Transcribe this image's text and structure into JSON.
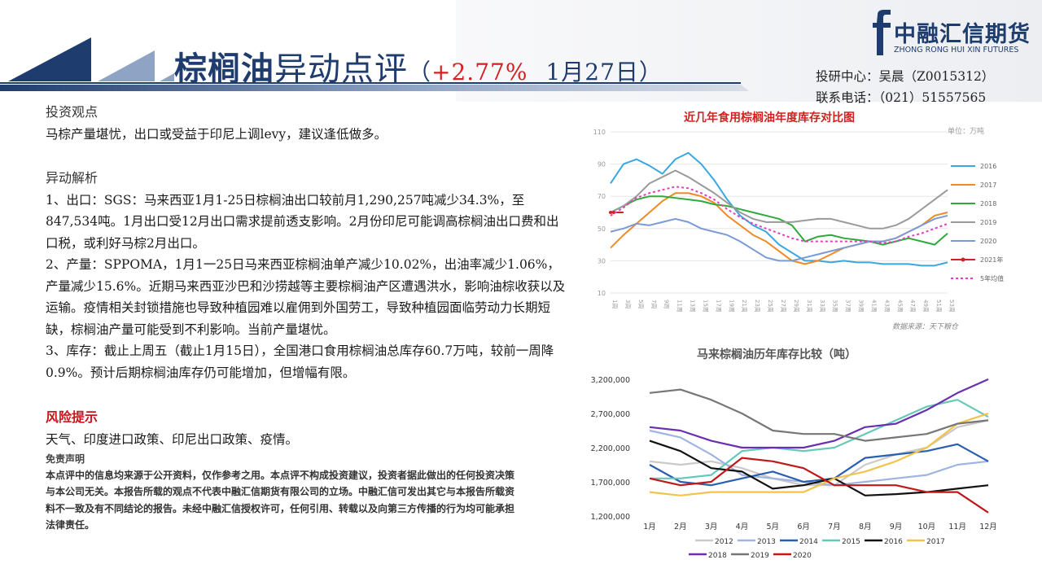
{
  "header": {
    "title_main": "棕榈油",
    "title_sub": "异动点评",
    "paren_open": "（",
    "change_pct": "+2.77%",
    "date": "1月27日",
    "paren_close": "）",
    "logo_cn": "中融汇信期货",
    "logo_en": "ZHONG RONG HUI XIN FUTURES",
    "analyst": "投研中心：吴晨（Z0015312）",
    "phone": "联系电话：（021）51557565",
    "colors": {
      "navy": "#1f3c6e",
      "red": "#d42020"
    }
  },
  "body": {
    "view_title": "投资观点",
    "view_text": "马棕产量堪忧，出口或受益于印尼上调levy，建议逢低做多。",
    "analysis_title": "异动解析",
    "p1": "1、出口：SGS：马来西亚1月1-25日棕榈油出口较前月1,290,257吨减少34.3%，至847,534吨。1月出口受12月出口需求提前透支影响。2月份印尼可能调高棕榈油出口费和出口税，或利好马棕2月出口。",
    "p2": "2、产量：SPPOMA，1月1一25日马来西亚棕榈油单产减少10.02%，出油率减少1.06%，产量减少15.6%。近期马来西亚沙巴和沙捞越等主要棕榈油产区遭遇洪水，影响油棕收获以及运输。疫情相关封锁措施也导致种植园难以雇佣到外国劳工，导致种植园面临劳动力长期短缺，棕榈油产量可能受到不利影响。当前产量堪忧。",
    "p3": "3、库存：截止上周五（截止1月15日），全国港口食用棕榈油总库存60.7万吨，较前一周降0.9%。预计后期棕榈油库存仍可能增加，但增幅有限。",
    "risk_title": "风险提示",
    "risk_text": "天气、印度进口政策、印尼出口政策、疫情。",
    "disclaimer_title": "免责声明",
    "disclaimer": "本点评中的信息均来源于公开资料，仅作参考之用。本点评不构成投资建议，投资者据此做出的任何投资决策与本公司无关。本报告所载的观点不代表中融汇信期货有限公司的立场。中融汇信可发出其它与本报告所载资料不一致及有不同结论的报告。未经中融汇信授权许可，任何引用、转载以及向第三方传播的行为均可能承担法律责任。"
  },
  "chart_data": [
    {
      "type": "line",
      "title": "近几年食用棕榈油年度库存对比图",
      "unit_label": "单位：万吨",
      "source": "数据来源：天下粮仓",
      "ylim": [
        10,
        110
      ],
      "yticks": [
        10,
        30,
        50,
        70,
        90,
        110
      ],
      "x_labels": [
        "1周",
        "3周",
        "5周",
        "7周",
        "9周",
        "11周",
        "13周",
        "15周",
        "17周",
        "19周",
        "21周",
        "23周",
        "25周",
        "27周",
        "29周",
        "31周",
        "33周",
        "35周",
        "37周",
        "39周",
        "41周",
        "43周",
        "45周",
        "47周",
        "49周",
        "51周",
        "53周"
      ],
      "series": [
        {
          "name": "2016",
          "color": "#3aa8e0",
          "dash": false,
          "values": [
            78,
            90,
            93,
            89,
            84,
            93,
            97,
            90,
            80,
            68,
            58,
            52,
            48,
            40,
            35,
            30,
            30,
            29,
            30,
            29,
            29,
            28,
            28,
            28,
            27,
            27,
            29
          ]
        },
        {
          "name": "2017",
          "color": "#f08a24",
          "dash": false,
          "values": [
            38,
            46,
            53,
            60,
            67,
            72,
            72,
            70,
            66,
            58,
            52,
            46,
            42,
            36,
            30,
            28,
            30,
            34,
            38,
            40,
            42,
            42,
            44,
            48,
            52,
            58,
            60
          ]
        },
        {
          "name": "2018",
          "color": "#2eaa3a",
          "dash": false,
          "values": [
            60,
            64,
            68,
            70,
            70,
            69,
            68,
            67,
            65,
            64,
            62,
            60,
            58,
            56,
            52,
            42,
            45,
            46,
            44,
            43,
            42,
            40,
            42,
            44,
            42,
            40,
            47
          ]
        },
        {
          "name": "2019",
          "color": "#9a9a9a",
          "dash": false,
          "values": [
            60,
            64,
            70,
            78,
            82,
            86,
            82,
            77,
            72,
            66,
            60,
            56,
            54,
            54,
            54,
            55,
            56,
            56,
            54,
            52,
            50,
            50,
            52,
            56,
            62,
            68,
            74
          ]
        },
        {
          "name": "2020",
          "color": "#7a9ad6",
          "dash": false,
          "values": [
            48,
            50,
            53,
            52,
            54,
            56,
            54,
            50,
            48,
            46,
            42,
            37,
            32,
            30,
            30,
            32,
            34,
            36,
            38,
            40,
            42,
            42,
            44,
            48,
            52,
            56,
            58
          ]
        },
        {
          "name": "2021年",
          "color": "#d42020",
          "dash": false,
          "values": [
            60,
            60
          ]
        },
        {
          "name": "5年均值",
          "color": "#e040c0",
          "dash": true,
          "values": [
            58,
            63,
            69,
            72,
            74,
            76,
            75,
            72,
            68,
            62,
            57,
            53,
            50,
            47,
            44,
            42,
            42,
            42,
            42,
            42,
            42,
            41,
            42,
            45,
            47,
            50,
            53
          ]
        }
      ]
    },
    {
      "type": "line",
      "title": "马来棕榈油历年库存比较（吨）",
      "ylim": [
        1200000,
        3200000
      ],
      "yticks_labels": [
        "1,200,000",
        "1,700,000",
        "2,200,000",
        "2,700,000",
        "3,200,000"
      ],
      "yticks": [
        1200000,
        1700000,
        2200000,
        2700000,
        3200000
      ],
      "categories": [
        "1月",
        "2月",
        "3月",
        "4月",
        "5月",
        "6月",
        "7月",
        "8月",
        "9月",
        "10月",
        "11月",
        "12月"
      ],
      "series": [
        {
          "name": "2012",
          "color": "#c9c9c9",
          "values": [
            2000000,
            1950000,
            2000000,
            1900000,
            1750000,
            1650000,
            1650000,
            1950000,
            2100000,
            2200000,
            2500000,
            2600000
          ]
        },
        {
          "name": "2013",
          "color": "#9fb4e0",
          "values": [
            2450000,
            2350000,
            2100000,
            1800000,
            1750000,
            1700000,
            1650000,
            1700000,
            1750000,
            1800000,
            1950000,
            2000000
          ]
        },
        {
          "name": "2014",
          "color": "#2a5fb0",
          "values": [
            1950000,
            1700000,
            1650000,
            1750000,
            1850000,
            1700000,
            1750000,
            2050000,
            2100000,
            2150000,
            2250000,
            2000000
          ]
        },
        {
          "name": "2015",
          "color": "#66c8b8",
          "values": [
            1750000,
            1750000,
            1800000,
            2150000,
            2200000,
            2150000,
            2200000,
            2400000,
            2600000,
            2800000,
            2900000,
            2650000
          ]
        },
        {
          "name": "2016",
          "color": "#111111",
          "values": [
            2300000,
            2150000,
            1900000,
            1850000,
            1600000,
            1650000,
            1750000,
            1500000,
            1520000,
            1550000,
            1600000,
            1650000
          ]
        },
        {
          "name": "2017",
          "color": "#f3c34a",
          "values": [
            1550000,
            1500000,
            1550000,
            1550000,
            1550000,
            1550000,
            1750000,
            1850000,
            2000000,
            2200000,
            2550000,
            2700000
          ]
        },
        {
          "name": "2018",
          "color": "#6a2eb0",
          "values": [
            2500000,
            2450000,
            2300000,
            2200000,
            2200000,
            2200000,
            2300000,
            2500000,
            2550000,
            2750000,
            3000000,
            3200000
          ]
        },
        {
          "name": "2019",
          "color": "#777777",
          "values": [
            3000000,
            3050000,
            2900000,
            2700000,
            2450000,
            2400000,
            2400000,
            2300000,
            2350000,
            2400000,
            2550000,
            2600000
          ]
        },
        {
          "name": "2020",
          "color": "#c01818",
          "values": [
            1750000,
            1650000,
            1700000,
            2050000,
            2000000,
            1900000,
            1650000,
            1650000,
            1650000,
            1550000,
            1550000,
            1250000
          ]
        }
      ]
    }
  ]
}
